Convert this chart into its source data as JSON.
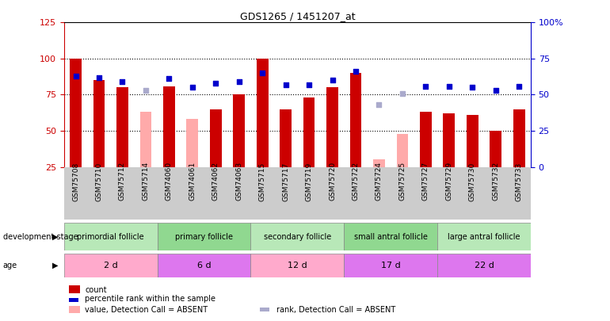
{
  "title": "GDS1265 / 1451207_at",
  "samples": [
    "GSM75708",
    "GSM75710",
    "GSM75712",
    "GSM75714",
    "GSM74060",
    "GSM74061",
    "GSM74062",
    "GSM74063",
    "GSM75715",
    "GSM75717",
    "GSM75719",
    "GSM75720",
    "GSM75722",
    "GSM75724",
    "GSM75725",
    "GSM75727",
    "GSM75729",
    "GSM75730",
    "GSM75732",
    "GSM75733"
  ],
  "count_values": [
    100,
    85,
    80,
    null,
    81,
    null,
    65,
    75,
    100,
    65,
    73,
    80,
    90,
    null,
    null,
    63,
    62,
    61,
    50,
    65
  ],
  "count_absent": [
    null,
    null,
    null,
    63,
    null,
    58,
    null,
    null,
    null,
    null,
    null,
    null,
    null,
    30,
    48,
    null,
    null,
    null,
    null,
    null
  ],
  "rank_values": [
    63,
    62,
    59,
    null,
    61,
    55,
    58,
    59,
    65,
    57,
    57,
    60,
    66,
    null,
    null,
    56,
    56,
    55,
    53,
    56
  ],
  "rank_absent": [
    null,
    null,
    null,
    53,
    null,
    null,
    null,
    null,
    null,
    null,
    null,
    null,
    null,
    43,
    51,
    null,
    null,
    null,
    null,
    null
  ],
  "groups": [
    {
      "label": "primordial follicle",
      "start": 0,
      "end": 4
    },
    {
      "label": "primary follicle",
      "start": 4,
      "end": 8
    },
    {
      "label": "secondary follicle",
      "start": 8,
      "end": 12
    },
    {
      "label": "small antral follicle",
      "start": 12,
      "end": 16
    },
    {
      "label": "large antral follicle",
      "start": 16,
      "end": 20
    }
  ],
  "group_colors": [
    "#b8e8b8",
    "#90d890",
    "#b8e8b8",
    "#90d890",
    "#b8e8b8"
  ],
  "ages": [
    {
      "label": "2 d",
      "start": 0,
      "end": 4
    },
    {
      "label": "6 d",
      "start": 4,
      "end": 8
    },
    {
      "label": "12 d",
      "start": 8,
      "end": 12
    },
    {
      "label": "17 d",
      "start": 12,
      "end": 16
    },
    {
      "label": "22 d",
      "start": 16,
      "end": 20
    }
  ],
  "age_colors": [
    "#ffaacc",
    "#dd77ee",
    "#ffaacc",
    "#dd77ee",
    "#dd77ee"
  ],
  "ylim_left": [
    25,
    125
  ],
  "ylim_right": [
    0,
    100
  ],
  "yticks_left": [
    25,
    50,
    75,
    100,
    125
  ],
  "yticks_right": [
    0,
    25,
    50,
    75,
    100
  ],
  "ytick_labels_right": [
    "0",
    "25",
    "50",
    "75",
    "100%"
  ],
  "bar_color_present": "#cc0000",
  "bar_color_absent": "#ffaaaa",
  "rank_color_present": "#0000cc",
  "rank_color_absent": "#aaaacc",
  "bar_width": 0.5,
  "rank_marker_size": 25,
  "dotted_line_values": [
    50,
    75,
    100
  ],
  "left_axis_color": "#cc0000",
  "right_axis_color": "#0000cc",
  "bg_gray": "#cccccc"
}
